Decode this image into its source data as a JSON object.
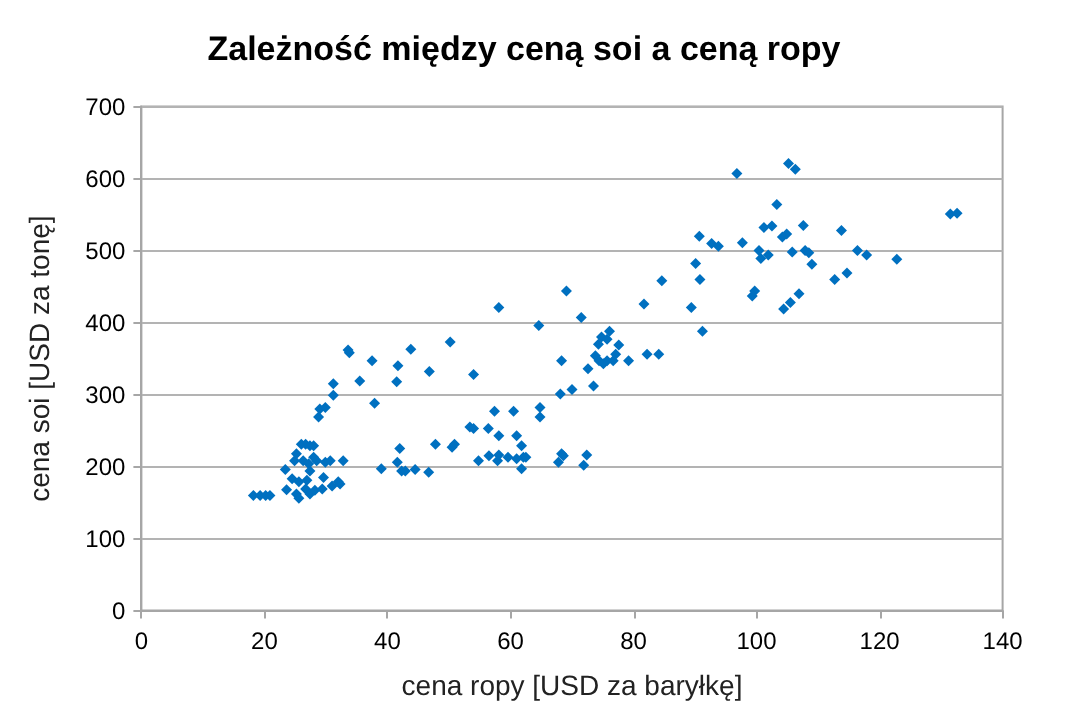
{
  "chart_data": {
    "type": "scatter",
    "title": "Zależność między ceną soi a ceną ropy",
    "xlabel": "cena ropy [USD za baryłkę]",
    "ylabel": "cena soi [USD za tonę]",
    "x": [
      18.2,
      19.3,
      20.2,
      20.9,
      23.4,
      23.6,
      24.5,
      24.9,
      25.2,
      25.6,
      25.2,
      25.6,
      26.0,
      26.7,
      27.4,
      28.0,
      26.3,
      27.2,
      28.0,
      28.5,
      27.4,
      26.9,
      26.7,
      27.4,
      28.2,
      29.4,
      29.6,
      29.9,
      30.7,
      31.0,
      32.0,
      32.3,
      32.8,
      28.8,
      29.0,
      29.9,
      31.2,
      31.2,
      33.6,
      33.8,
      35.5,
      37.5,
      37.9,
      39.0,
      41.5,
      41.7,
      41.6,
      42.0,
      42.3,
      42.9,
      44.5,
      43.8,
      46.7,
      46.8,
      47.8,
      50.2,
      50.5,
      50.9,
      53.4,
      54.0,
      54.0,
      54.8,
      56.4,
      56.5,
      57.4,
      57.9,
      58.1,
      58.1,
      58.1,
      59.6,
      60.5,
      61.0,
      61.0,
      61.8,
      61.8,
      62.1,
      62.5,
      64.6,
      64.8,
      64.8,
      67.8,
      68.3,
      68.6,
      68.1,
      68.3,
      69.1,
      70.0,
      71.5,
      71.9,
      72.4,
      72.6,
      73.5,
      73.8,
      74.3,
      74.4,
      74.8,
      75.1,
      75.7,
      75.7,
      76.1,
      76.7,
      77.1,
      77.6,
      79.2,
      81.7,
      82.2,
      84.1,
      84.6,
      89.4,
      90.1,
      90.7,
      90.8,
      91.2,
      92.7,
      93.8,
      96.8,
      97.7,
      99.3,
      99.7,
      100.4,
      100.7,
      101.2,
      101.9,
      102.5,
      103.3,
      104.4,
      104.2,
      104.9,
      105.2,
      105.5,
      105.8,
      106.3,
      106.9,
      107.6,
      107.9,
      108.5,
      109.0,
      112.7,
      113.8,
      114.7,
      116.4,
      117.9,
      122.8,
      131.5,
      132.6
    ],
    "values": [
      160,
      160,
      160,
      160,
      196,
      168,
      183,
      208,
      218,
      179,
      162,
      156,
      231,
      231,
      229,
      229,
      208,
      204,
      213,
      208,
      194,
      181,
      169,
      162,
      167,
      169,
      185,
      206,
      208,
      173,
      179,
      176,
      208,
      269,
      280,
      282,
      299,
      315,
      362,
      358,
      319,
      347,
      288,
      197,
      318,
      340,
      206,
      225,
      194,
      194,
      196,
      363,
      192,
      332,
      231,
      373,
      227,
      231,
      255,
      253,
      328,
      208,
      253,
      215,
      277,
      208,
      421,
      243,
      216,
      213,
      277,
      243,
      211,
      229,
      197,
      213,
      213,
      396,
      282,
      269,
      206,
      218,
      215,
      301,
      347,
      444,
      307,
      407,
      202,
      216,
      336,
      312,
      354,
      370,
      347,
      380,
      343,
      377,
      347,
      388,
      347,
      356,
      369,
      347,
      426,
      356,
      356,
      458,
      421,
      482,
      520,
      460,
      388,
      510,
      506,
      607,
      511,
      437,
      444,
      500,
      489,
      532,
      494,
      534,
      564,
      419,
      519,
      523,
      621,
      428,
      498,
      613,
      440,
      535,
      500,
      497,
      481,
      460,
      528,
      469,
      500,
      494,
      488,
      551,
      552
    ],
    "color": "#0070c0",
    "marker": "diamond",
    "xlim": [
      0,
      140
    ],
    "xticks": [
      0,
      20,
      40,
      60,
      80,
      100,
      120,
      140
    ],
    "ylim": [
      0,
      700
    ],
    "yticks": [
      0,
      100,
      200,
      300,
      400,
      500,
      600,
      700
    ],
    "grid": "y"
  }
}
